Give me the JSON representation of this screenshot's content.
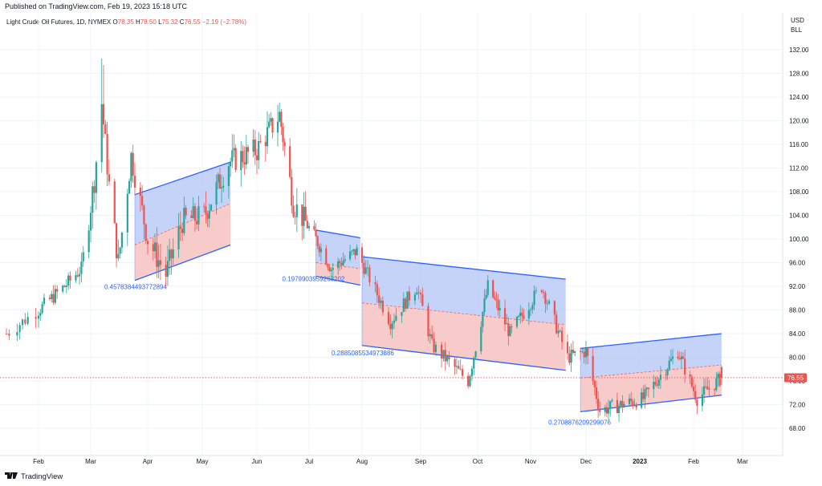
{
  "header": {
    "published": "Published on TradingView.com, Feb 19, 2023 15:18 UTC",
    "symbol": "Light Crude Oil Futures, 1D, NYMEX",
    "o_label": "O",
    "o_value": "78.35",
    "h_label": "H",
    "h_value": "78.50",
    "l_label": "L",
    "l_value": "75.32",
    "c_label": "C",
    "c_value": "76.55",
    "change": "−2.19 (−2.78%)"
  },
  "axis": {
    "currency": "USD",
    "unit": "BLL",
    "y_ticks": [
      "132.00",
      "128.00",
      "124.00",
      "120.00",
      "116.00",
      "112.00",
      "108.00",
      "104.00",
      "100.00",
      "96.00",
      "92.00",
      "88.00",
      "84.00",
      "80.00",
      "76.00",
      "72.00",
      "68.00"
    ],
    "x_ticks": [
      "Feb",
      "Mar",
      "Apr",
      "May",
      "Jun",
      "Jul",
      "Aug",
      "Sep",
      "Oct",
      "Nov",
      "Dec",
      "2023",
      "Feb",
      "Mar"
    ],
    "current_price": "76.55"
  },
  "colors": {
    "up": "#26a69a",
    "down": "#ef5350",
    "channel_upper_fill": "#b2c4f5",
    "channel_lower_fill": "#f7c2c2",
    "channel_line": "#2962ff",
    "label_text": "#2962ff"
  },
  "footer": {
    "brand": "TradingView",
    "logo_icon": "tradingview-logo-icon"
  },
  "chart_data": {
    "type": "candlestick",
    "title": "Light Crude Oil Futures, 1D, NYMEX",
    "ylim": [
      65,
      136
    ],
    "x_categories": [
      "Feb",
      "Mar",
      "Apr",
      "May",
      "Jun",
      "Jul",
      "Aug",
      "Sep",
      "Oct",
      "Nov",
      "Dec",
      "2023",
      "Feb",
      "Mar"
    ],
    "price_path": [
      [
        "2022-01-20",
        84
      ],
      [
        "2022-02-01",
        88
      ],
      [
        "2022-02-15",
        92
      ],
      [
        "2022-02-24",
        95
      ],
      [
        "2022-03-03",
        110
      ],
      [
        "2022-03-07",
        123
      ],
      [
        "2022-03-11",
        109
      ],
      [
        "2022-03-16",
        96
      ],
      [
        "2022-03-23",
        114
      ],
      [
        "2022-04-01",
        100
      ],
      [
        "2022-04-11",
        94
      ],
      [
        "2022-04-20",
        103
      ],
      [
        "2022-05-02",
        104
      ],
      [
        "2022-05-16",
        113
      ],
      [
        "2022-06-01",
        115
      ],
      [
        "2022-06-14",
        121
      ],
      [
        "2022-06-22",
        106
      ],
      [
        "2022-07-05",
        100
      ],
      [
        "2022-07-14",
        95
      ],
      [
        "2022-07-29",
        98
      ],
      [
        "2022-08-16",
        86
      ],
      [
        "2022-08-30",
        92
      ],
      [
        "2022-09-07",
        82
      ],
      [
        "2022-09-26",
        76
      ],
      [
        "2022-10-07",
        92
      ],
      [
        "2022-10-20",
        84
      ],
      [
        "2022-11-07",
        92
      ],
      [
        "2022-11-21",
        80
      ],
      [
        "2022-12-01",
        81
      ],
      [
        "2022-12-09",
        71
      ],
      [
        "2023-01-03",
        73
      ],
      [
        "2023-01-23",
        81
      ],
      [
        "2023-02-03",
        73
      ],
      [
        "2023-02-17",
        76.55
      ]
    ],
    "last": {
      "open": 78.35,
      "high": 78.5,
      "low": 75.32,
      "close": 76.55,
      "change": -2.19,
      "change_pct": -2.78
    },
    "channels": [
      {
        "label": "0.4578384493772894",
        "start": "2022-03-25",
        "end": "2022-05-17",
        "upper": [
          107.5,
          113
        ],
        "lower": [
          93,
          99
        ],
        "mid": [
          99,
          106
        ]
      },
      {
        "label": "0.1979903959263202",
        "start": "2022-07-05",
        "end": "2022-07-31",
        "upper": [
          101.5,
          100.2
        ],
        "lower": [
          93.7,
          92.2
        ],
        "mid": [
          96,
          95
        ]
      },
      {
        "label": "0.2885085534973886",
        "start": "2022-08-01",
        "end": "2022-11-20",
        "upper": [
          97,
          93.2
        ],
        "lower": [
          82,
          77.8
        ],
        "mid": [
          89.2,
          85.5
        ]
      },
      {
        "label": "0.2708876209299076",
        "start": "2022-11-28",
        "end": "2023-02-17",
        "upper": [
          81.5,
          84
        ],
        "lower": [
          70.8,
          73.6
        ],
        "mid": [
          76.5,
          78.7
        ]
      }
    ]
  }
}
